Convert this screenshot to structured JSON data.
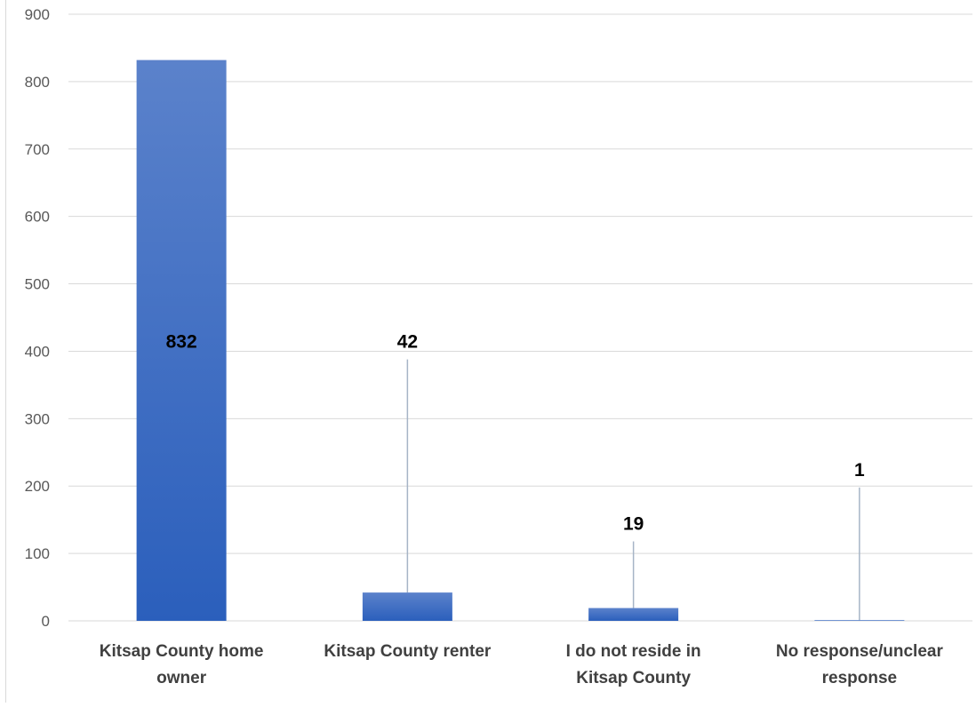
{
  "chart_data": {
    "type": "bar",
    "title": "",
    "xlabel": "",
    "ylabel": "",
    "ylim": [
      0,
      900
    ],
    "yticks": [
      0,
      100,
      200,
      300,
      400,
      500,
      600,
      700,
      800,
      900
    ],
    "grid": true,
    "legend": "none",
    "categories": [
      [
        "Kitsap County home",
        "owner"
      ],
      [
        "Kitsap County renter"
      ],
      [
        "I do not reside in",
        "Kitsap County"
      ],
      [
        "No response/unclear",
        "response"
      ]
    ],
    "values": [
      832,
      42,
      19,
      1
    ],
    "data_labels": [
      "832",
      "42",
      "19",
      "1"
    ],
    "label_positions": [
      "inside",
      "callout",
      "callout",
      "callout"
    ],
    "callout_label_values": [
      null,
      405,
      135,
      215
    ],
    "colors": {
      "bar_top": "#5b82cb",
      "bar_bottom": "#2b5fbc",
      "grid": "#d9d9d9",
      "tick_text": "#595959",
      "category_text": "#404040",
      "label_text": "#000000",
      "leader": "#a6b4c6"
    }
  }
}
